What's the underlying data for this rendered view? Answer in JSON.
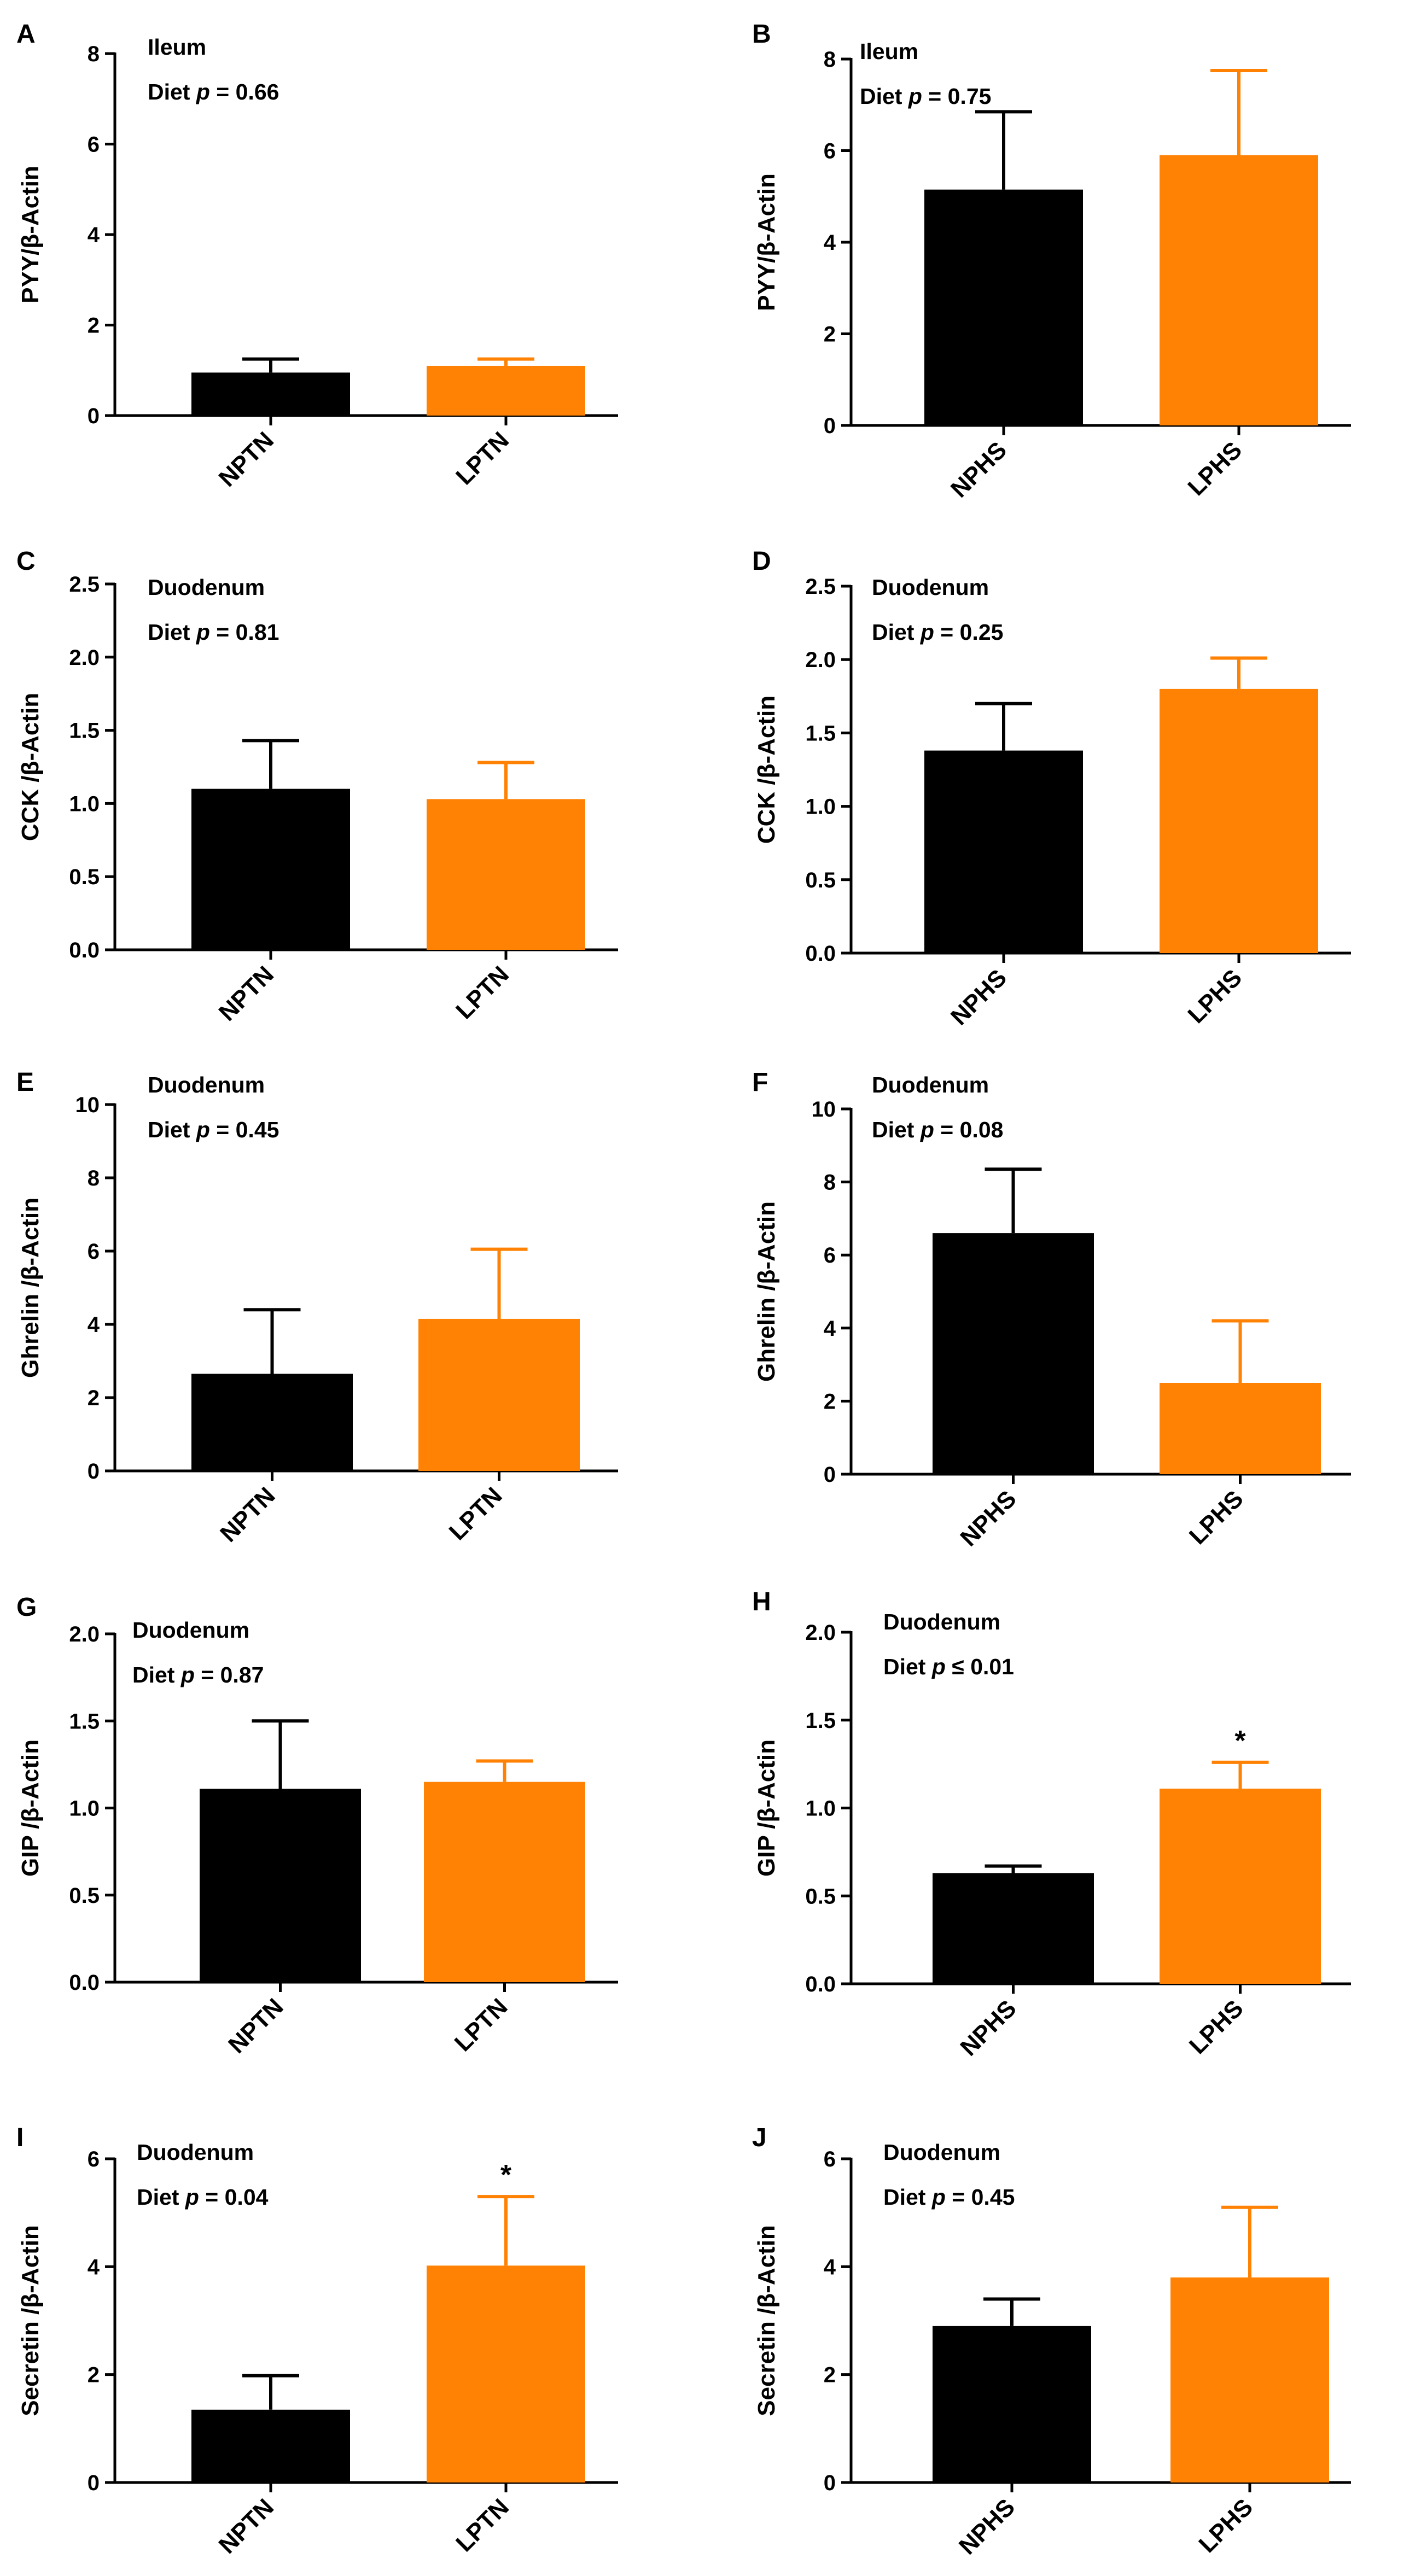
{
  "figure": {
    "colors": {
      "NP": "#000000",
      "LP": "#ff8205"
    }
  },
  "chart_data": [
    {
      "panel": "A",
      "type": "bar",
      "annotation_lines": [
        "Ileum",
        "Diet p = 0.66"
      ],
      "ylabel": "PYY/β-Actin",
      "ylim": [
        0,
        8
      ],
      "yticks": [
        0,
        2,
        4,
        6,
        8
      ],
      "categories": [
        "NPTN",
        "LPTN"
      ],
      "values": [
        0.95,
        1.1
      ],
      "errors": [
        0.3,
        0.15
      ],
      "significance": [
        "",
        ""
      ]
    },
    {
      "panel": "B",
      "type": "bar",
      "annotation_lines": [
        "Ileum",
        "Diet p = 0.75"
      ],
      "ylabel": "PYY/β-Actin",
      "ylim": [
        0,
        8
      ],
      "yticks": [
        0,
        2,
        4,
        6,
        8
      ],
      "categories": [
        "NPHS",
        "LPHS"
      ],
      "values": [
        5.15,
        5.9
      ],
      "errors": [
        1.7,
        1.85
      ],
      "significance": [
        "",
        ""
      ]
    },
    {
      "panel": "C",
      "type": "bar",
      "annotation_lines": [
        "Duodenum",
        "Diet p = 0.81"
      ],
      "ylabel": "CCK /β-Actin",
      "ylim": [
        0,
        2.5
      ],
      "yticks": [
        0.0,
        0.5,
        1.0,
        1.5,
        2.0,
        2.5
      ],
      "categories": [
        "NPTN",
        "LPTN"
      ],
      "values": [
        1.1,
        1.03
      ],
      "errors": [
        0.33,
        0.25
      ],
      "significance": [
        "",
        ""
      ]
    },
    {
      "panel": "D",
      "type": "bar",
      "annotation_lines": [
        "Duodenum",
        "Diet p = 0.25"
      ],
      "ylabel": "CCK /β-Actin",
      "ylim": [
        0,
        2.5
      ],
      "yticks": [
        0.0,
        0.5,
        1.0,
        1.5,
        2.0,
        2.5
      ],
      "categories": [
        "NPHS",
        "LPHS"
      ],
      "values": [
        1.38,
        1.8
      ],
      "errors": [
        0.32,
        0.21
      ],
      "significance": [
        "",
        ""
      ]
    },
    {
      "panel": "E",
      "type": "bar",
      "annotation_lines": [
        "Duodenum",
        "Diet p = 0.45"
      ],
      "ylabel": "Ghrelin /β-Actin",
      "ylim": [
        0,
        10
      ],
      "yticks": [
        0,
        2,
        4,
        6,
        8,
        10
      ],
      "categories": [
        "NPTN",
        "LPTN"
      ],
      "values": [
        2.65,
        4.15
      ],
      "errors": [
        1.75,
        1.9
      ],
      "significance": [
        "",
        ""
      ]
    },
    {
      "panel": "F",
      "type": "bar",
      "annotation_lines": [
        "Duodenum",
        "Diet p = 0.08"
      ],
      "ylabel": "Ghrelin /β-Actin",
      "ylim": [
        0,
        10
      ],
      "yticks": [
        0,
        2,
        4,
        6,
        8,
        10
      ],
      "categories": [
        "NPHS",
        "LPHS"
      ],
      "values": [
        6.6,
        2.5
      ],
      "errors": [
        1.75,
        1.7
      ],
      "significance": [
        "",
        ""
      ]
    },
    {
      "panel": "G",
      "type": "bar",
      "annotation_lines": [
        "Duodenum",
        "Diet p = 0.87"
      ],
      "ylabel": "GIP /β-Actin",
      "ylim": [
        0,
        2.0
      ],
      "yticks": [
        0.0,
        0.5,
        1.0,
        1.5,
        2.0
      ],
      "categories": [
        "NPTN",
        "LPTN"
      ],
      "values": [
        1.11,
        1.15
      ],
      "errors": [
        0.39,
        0.12
      ],
      "significance": [
        "",
        ""
      ]
    },
    {
      "panel": "H",
      "type": "bar",
      "annotation_lines": [
        "Duodenum",
        "Diet p ≤ 0.01"
      ],
      "ylabel": "GIP /β-Actin",
      "ylim": [
        0,
        2.0
      ],
      "yticks": [
        0.0,
        0.5,
        1.0,
        1.5,
        2.0
      ],
      "categories": [
        "NPHS",
        "LPHS"
      ],
      "values": [
        0.63,
        1.11
      ],
      "errors": [
        0.04,
        0.15
      ],
      "significance": [
        "",
        "*"
      ]
    },
    {
      "panel": "I",
      "type": "bar",
      "annotation_lines": [
        "Duodenum",
        "Diet p = 0.04"
      ],
      "ylabel": "Secretin /β-Actin",
      "ylim": [
        0,
        6
      ],
      "yticks": [
        0,
        2,
        4,
        6
      ],
      "categories": [
        "NPTN",
        "LPTN"
      ],
      "values": [
        1.35,
        4.02
      ],
      "errors": [
        0.63,
        1.28
      ],
      "significance": [
        "",
        "*"
      ]
    },
    {
      "panel": "J",
      "type": "bar",
      "annotation_lines": [
        "Duodenum",
        "Diet p = 0.45"
      ],
      "ylabel": "Secretin /β-Actin",
      "ylim": [
        0,
        6
      ],
      "yticks": [
        0,
        2,
        4,
        6
      ],
      "categories": [
        "NPHS",
        "LPHS"
      ],
      "values": [
        2.9,
        3.8
      ],
      "errors": [
        0.5,
        1.3
      ],
      "significance": [
        "",
        ""
      ]
    }
  ]
}
